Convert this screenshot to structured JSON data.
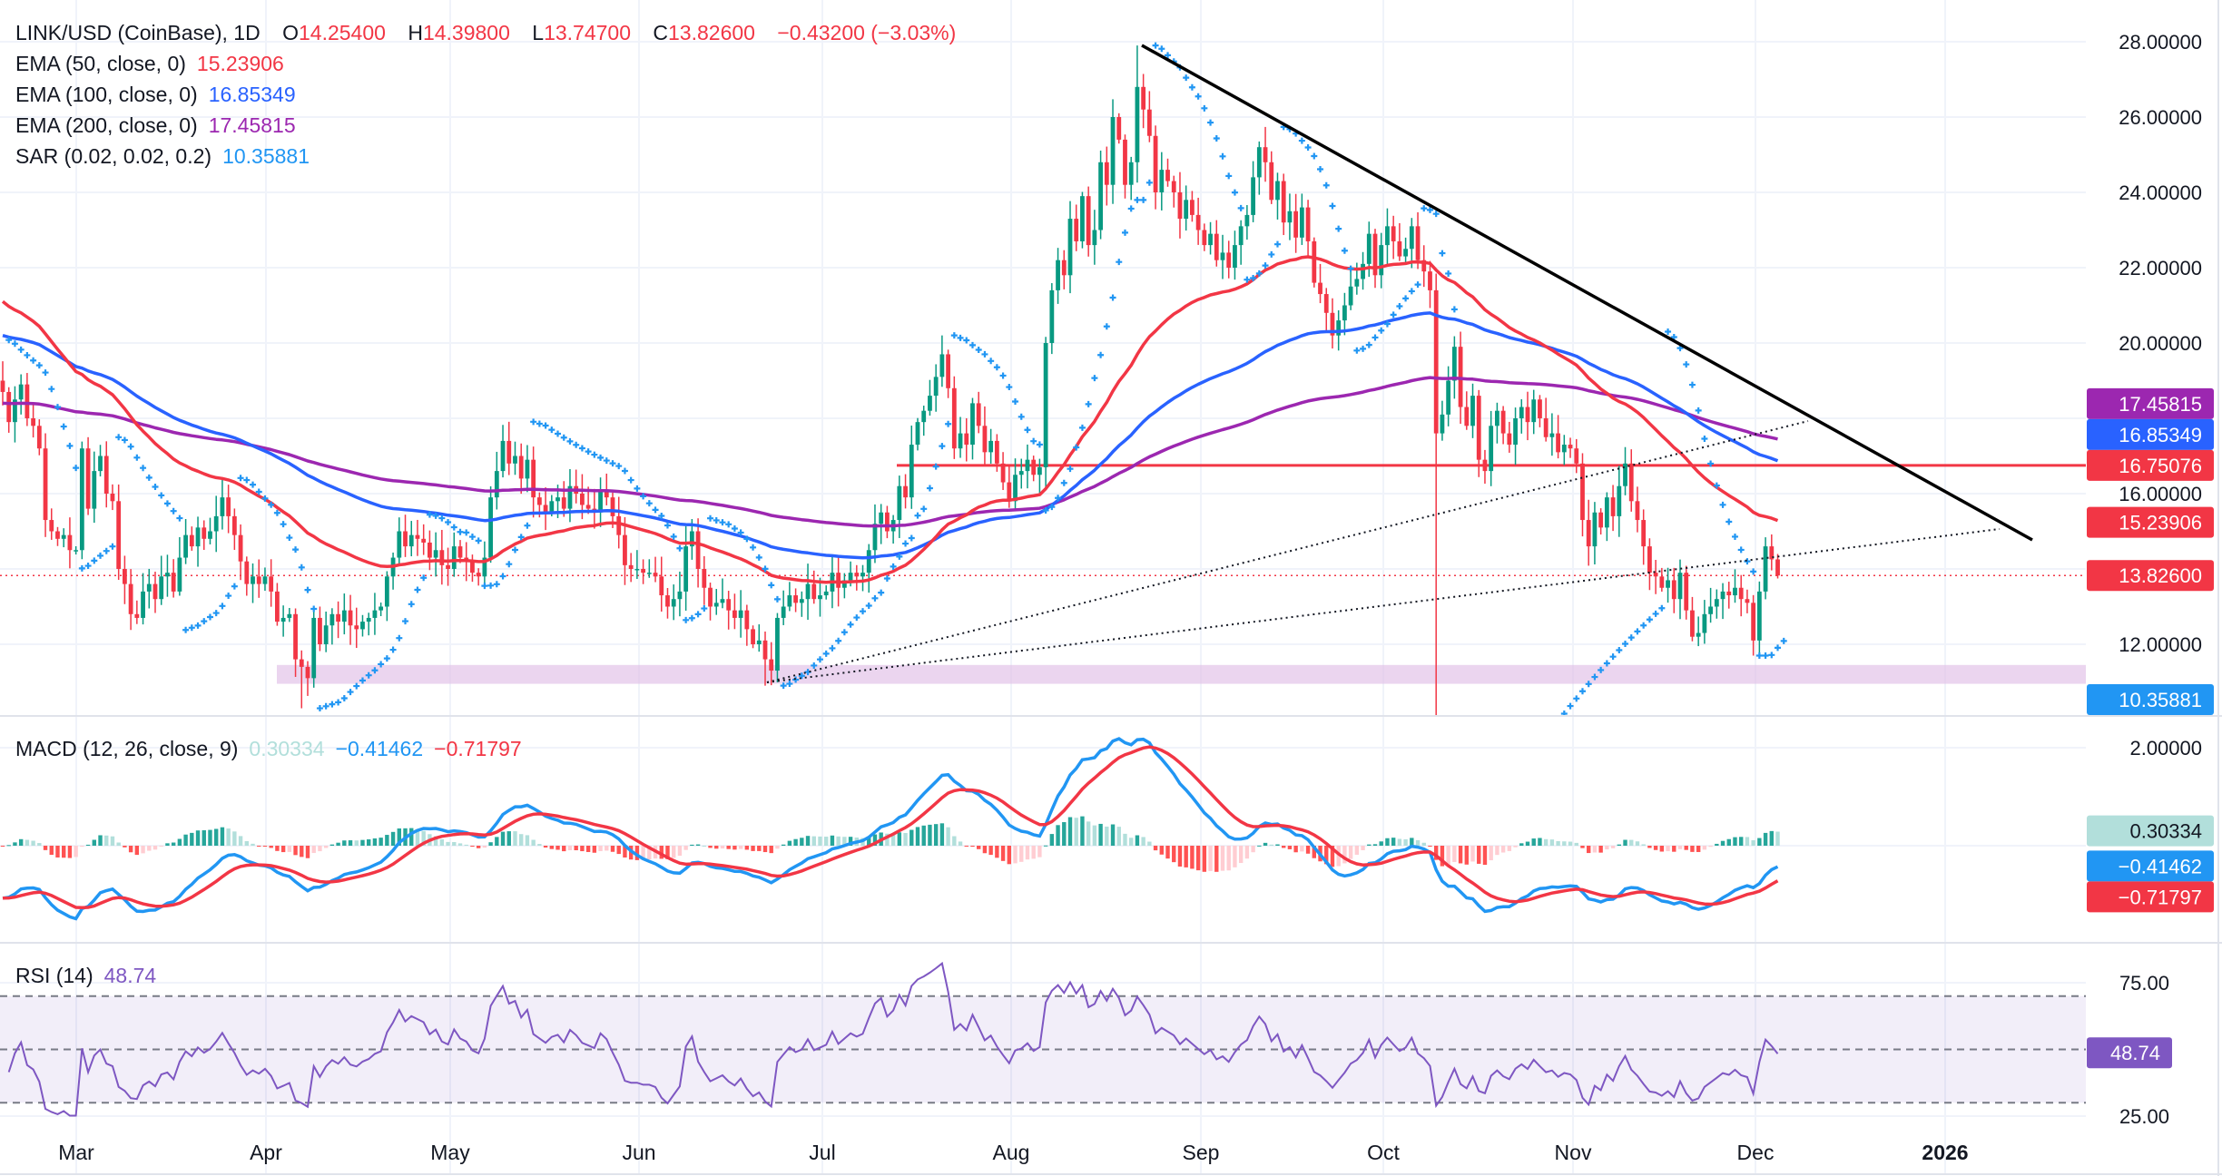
{
  "header": {
    "symbol": "LINK/USD (CoinBase), 1D",
    "o_label": "O",
    "open": "14.25400",
    "h_label": "H",
    "high": "14.39800",
    "l_label": "L",
    "low": "13.74700",
    "c_label": "C",
    "close": "13.82600",
    "change": "−0.43200 (−3.03%)"
  },
  "indicators": {
    "ema50": {
      "label": "EMA (50, close, 0)",
      "value": "15.23906",
      "color": "#f23645",
      "period": 50,
      "start": 21.1
    },
    "ema100": {
      "label": "EMA (100, close, 0)",
      "value": "16.85349",
      "color": "#2962ff",
      "period": 100,
      "start": 20.2
    },
    "ema200": {
      "label": "EMA (200, close, 0)",
      "value": "17.45815",
      "color": "#9c27b0",
      "period": 200,
      "start": 18.4
    },
    "sar": {
      "label": "SAR (0.02, 0.02, 0.2)",
      "value": "10.35881",
      "color": "#2196f3"
    }
  },
  "macd": {
    "label": "MACD (12, 26, close, 9)",
    "hist_value": "0.30334",
    "macd_value": "−0.41462",
    "signal_value": "−0.71797",
    "hist_color": "#b2dfdb",
    "macd_color": "#2196f3",
    "signal_color": "#f23645",
    "start": -1.07
  },
  "rsi": {
    "label": "RSI (14)",
    "value": "48.74",
    "color": "#7e57c2",
    "levels": [
      70,
      50,
      30
    ]
  },
  "drawings": {
    "horizontal_line": {
      "value": 16.75076,
      "label": "16.75076",
      "color": "#f23645"
    },
    "support_zone": [
      10.95,
      11.45
    ],
    "current_price": {
      "value": 13.826,
      "label": "13.82600"
    }
  },
  "axes": {
    "price_ticks": [
      "28.00000",
      "26.00000",
      "24.00000",
      "22.00000",
      "20.00000",
      "18.00000",
      "16.00000",
      "14.00000",
      "12.00000"
    ],
    "macd_ticks": [
      "2.00000"
    ],
    "rsi_ticks": [
      "75.00",
      "25.00"
    ],
    "time_ticks": [
      "Mar",
      "Apr",
      "May",
      "Jun",
      "Jul",
      "Aug",
      "Sep",
      "Oct",
      "Nov",
      "Dec",
      "2026"
    ]
  },
  "chart_data": {
    "type": "candlestick",
    "symbol": "LINK/USD",
    "interval": "1D",
    "ylim": [
      10.1,
      29.0
    ],
    "grid": true,
    "up_color": "#089981",
    "down_color": "#f23645",
    "close": [
      18.7,
      17.9,
      18.5,
      18.9,
      18.0,
      17.8,
      17.2,
      15.3,
      15.0,
      14.8,
      14.9,
      14.5,
      14.5,
      17.2,
      15.6,
      16.6,
      17.0,
      16.0,
      15.8,
      14.0,
      13.6,
      12.8,
      12.7,
      13.4,
      13.6,
      13.2,
      13.8,
      13.9,
      13.4,
      14.3,
      14.9,
      14.6,
      15.1,
      14.8,
      15.0,
      15.4,
      15.9,
      15.4,
      14.9,
      14.2,
      13.6,
      13.8,
      13.6,
      13.8,
      13.4,
      12.6,
      12.7,
      12.8,
      11.6,
      11.4,
      11.1,
      12.7,
      12.0,
      12.5,
      12.8,
      12.6,
      12.9,
      12.5,
      12.4,
      12.6,
      12.7,
      12.9,
      13.0,
      13.8,
      14.3,
      15.0,
      14.6,
      14.9,
      14.8,
      14.7,
      14.3,
      14.5,
      14.1,
      14.0,
      14.6,
      14.3,
      14.2,
      13.9,
      13.8,
      14.3,
      15.9,
      16.6,
      17.4,
      16.8,
      17.0,
      16.4,
      16.9,
      15.9,
      15.7,
      15.5,
      15.8,
      15.9,
      15.6,
      16.2,
      16.0,
      15.7,
      15.6,
      15.5,
      16.1,
      15.9,
      15.4,
      14.9,
      14.1,
      14.0,
      14.0,
      13.9,
      13.9,
      13.8,
      13.3,
      13.0,
      13.2,
      13.4,
      14.6,
      15.0,
      14.0,
      13.5,
      13.0,
      13.1,
      13.2,
      12.9,
      12.7,
      12.9,
      12.4,
      12.0,
      12.1,
      11.6,
      11.3,
      12.7,
      13.0,
      13.3,
      13.1,
      13.2,
      13.6,
      13.2,
      13.3,
      13.4,
      13.9,
      13.5,
      13.7,
      13.9,
      13.8,
      13.9,
      14.5,
      15.2,
      15.5,
      15.0,
      15.3,
      16.2,
      15.9,
      17.3,
      17.9,
      18.2,
      18.6,
      19.1,
      19.7,
      18.8,
      17.2,
      17.6,
      17.3,
      18.4,
      17.8,
      17.1,
      17.4,
      16.8,
      16.3,
      15.8,
      16.5,
      16.6,
      16.9,
      16.5,
      16.7,
      20.0,
      21.4,
      22.2,
      21.8,
      23.3,
      22.7,
      23.9,
      22.6,
      23.0,
      24.8,
      24.2,
      26.0,
      25.4,
      24.2,
      24.8,
      26.8,
      26.2,
      25.5,
      24.0,
      24.6,
      24.3,
      24.0,
      23.3,
      23.8,
      23.4,
      23.0,
      22.6,
      22.9,
      22.2,
      22.4,
      22.0,
      22.6,
      23.1,
      23.4,
      24.4,
      25.2,
      24.8,
      23.8,
      24.3,
      23.2,
      23.5,
      22.8,
      23.6,
      22.7,
      21.6,
      21.3,
      20.8,
      20.2,
      20.6,
      21.0,
      21.5,
      21.7,
      22.1,
      22.9,
      21.8,
      22.6,
      23.1,
      22.7,
      22.3,
      22.5,
      23.1,
      22.2,
      21.9,
      21.4,
      17.6,
      18.1,
      19.0,
      19.9,
      18.3,
      17.8,
      18.6,
      16.9,
      16.6,
      17.8,
      18.2,
      17.6,
      17.3,
      18.0,
      18.3,
      17.9,
      18.5,
      18.0,
      17.5,
      17.6,
      17.1,
      17.3,
      17.2,
      16.8,
      15.3,
      14.6,
      15.5,
      15.1,
      15.9,
      15.4,
      16.2,
      16.8,
      15.8,
      15.3,
      14.6,
      13.9,
      13.8,
      13.5,
      13.7,
      13.2,
      13.9,
      12.9,
      12.2,
      12.3,
      12.8,
      13.0,
      13.2,
      13.4,
      13.3,
      13.5,
      13.2,
      13.1,
      12.1,
      13.4,
      14.6,
      14.254,
      13.826
    ],
    "wick_extremes": [
      {
        "bar": 49,
        "low": 10.3
      },
      {
        "bar": 125,
        "low": 10.9
      },
      {
        "bar": 186,
        "high": 27.9
      },
      {
        "bar": 235,
        "low": 6.0
      }
    ]
  }
}
